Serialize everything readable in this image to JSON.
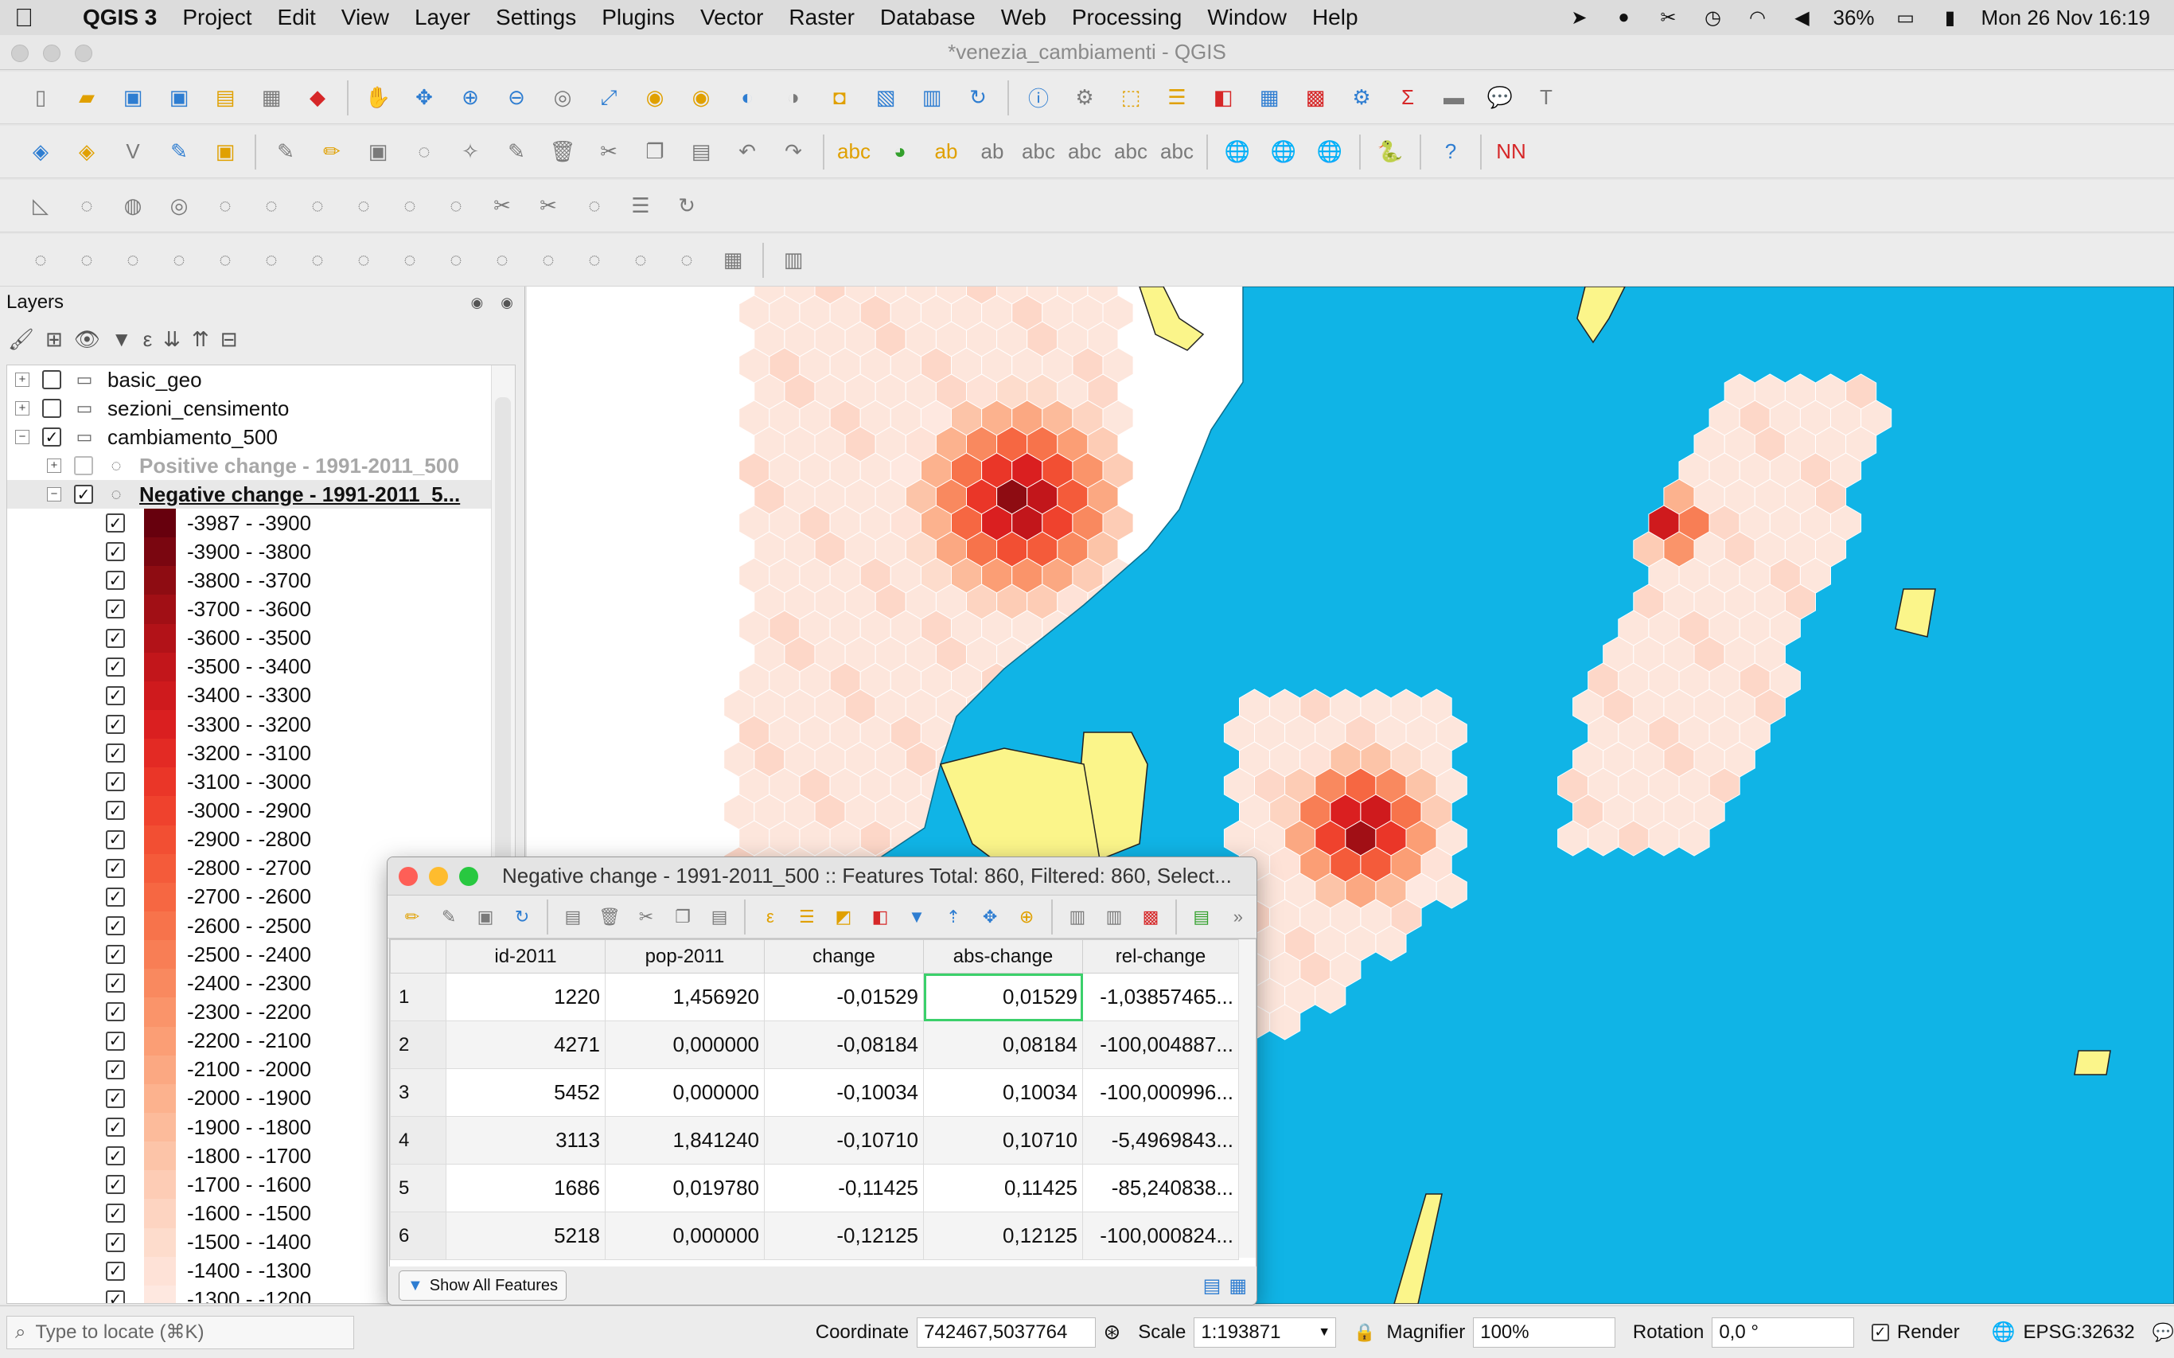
{
  "menubar": {
    "app_name": "QGIS 3",
    "items": [
      "Project",
      "Edit",
      "View",
      "Layer",
      "Settings",
      "Plugins",
      "Vector",
      "Raster",
      "Database",
      "Web",
      "Processing",
      "Window",
      "Help"
    ],
    "battery": "36%",
    "datetime": "Mon 26 Nov 16:19"
  },
  "window": {
    "title": "*venezia_cambiamenti - QGIS"
  },
  "layers_panel": {
    "title": "Layers",
    "layers": [
      {
        "name": "basic_geo",
        "checked": false,
        "expanded": false
      },
      {
        "name": "sezioni_censimento",
        "checked": false,
        "expanded": false
      },
      {
        "name": "cambiamento_500",
        "checked": true,
        "expanded": true
      },
      {
        "name": "Positive change - 1991-2011_500",
        "checked": false,
        "expanded": false
      },
      {
        "name": "Negative change - 1991-2011_5...",
        "checked": true,
        "expanded": true
      }
    ],
    "legend": [
      {
        "label": "-3987 - -3900",
        "color": "#67000d"
      },
      {
        "label": "-3900 - -3800",
        "color": "#7a0610"
      },
      {
        "label": "-3800 - -3700",
        "color": "#8e0c12"
      },
      {
        "label": "-3700 - -3600",
        "color": "#a10f15"
      },
      {
        "label": "-3600 - -3500",
        "color": "#b21218"
      },
      {
        "label": "-3500 - -3400",
        "color": "#c2161b"
      },
      {
        "label": "-3400 - -3300",
        "color": "#cf1a1d"
      },
      {
        "label": "-3300 - -3200",
        "color": "#da1f20"
      },
      {
        "label": "-3200 - -3100",
        "color": "#e32a24"
      },
      {
        "label": "-3100 - -3000",
        "color": "#ea3628"
      },
      {
        "label": "-3000 - -2900",
        "color": "#ef422d"
      },
      {
        "label": "-2900 - -2800",
        "color": "#f24f33"
      },
      {
        "label": "-2800 - -2700",
        "color": "#f45b3a"
      },
      {
        "label": "-2700 - -2600",
        "color": "#f66742"
      },
      {
        "label": "-2600 - -2500",
        "color": "#f7734b"
      },
      {
        "label": "-2500 - -2400",
        "color": "#f87e55"
      },
      {
        "label": "-2400 - -2300",
        "color": "#f9895f"
      },
      {
        "label": "-2300 - -2200",
        "color": "#fa946a"
      },
      {
        "label": "-2200 - -2100",
        "color": "#fb9e75"
      },
      {
        "label": "-2100 - -2000",
        "color": "#fba882"
      },
      {
        "label": "-2000 - -1900",
        "color": "#fcb28e"
      },
      {
        "label": "-1900 - -1800",
        "color": "#fcbb9b"
      },
      {
        "label": "-1800 - -1700",
        "color": "#fcc4a8"
      },
      {
        "label": "-1700 - -1600",
        "color": "#fdccb5"
      },
      {
        "label": "-1600 - -1500",
        "color": "#fdd4c1"
      },
      {
        "label": "-1500 - -1400",
        "color": "#fddccc"
      },
      {
        "label": "-1400 - -1300",
        "color": "#fee2d7"
      },
      {
        "label": "-1300 - -1200",
        "color": "#fee8e0"
      }
    ]
  },
  "attribute_table": {
    "title": "Negative change - 1991-2011_500 :: Features Total: 860, Filtered: 860, Select...",
    "columns": [
      "id-2011",
      "pop-2011",
      "change",
      "abs-change",
      "rel-change"
    ],
    "rows": [
      [
        "1",
        "1220",
        "1,456920",
        "-0,01529",
        "0,01529",
        "-1,03857465..."
      ],
      [
        "2",
        "4271",
        "0,000000",
        "-0,08184",
        "0,08184",
        "-100,004887..."
      ],
      [
        "3",
        "5452",
        "0,000000",
        "-0,10034",
        "0,10034",
        "-100,000996..."
      ],
      [
        "4",
        "3113",
        "1,841240",
        "-0,10710",
        "0,10710",
        "-5,4969843..."
      ],
      [
        "5",
        "1686",
        "0,019780",
        "-0,11425",
        "0,11425",
        "-85,240838..."
      ],
      [
        "6",
        "5218",
        "0,000000",
        "-0,12125",
        "0,12125",
        "-100,000824..."
      ]
    ],
    "show_button": "Show All Features"
  },
  "statusbar": {
    "locate_placeholder": "Type to locate (⌘K)",
    "coordinate_label": "Coordinate",
    "coordinate_value": "742467,5037764",
    "scale_label": "Scale",
    "scale_value": "1:193871",
    "magnifier_label": "Magnifier",
    "magnifier_value": "100%",
    "rotation_label": "Rotation",
    "rotation_value": "0,0 °",
    "render_label": "Render",
    "crs": "EPSG:32632"
  },
  "colors": {
    "water": "#10b4e6",
    "sand": "#fbf58a",
    "hex_base": "#fde6dc",
    "accent_select": "#3bd06b"
  }
}
